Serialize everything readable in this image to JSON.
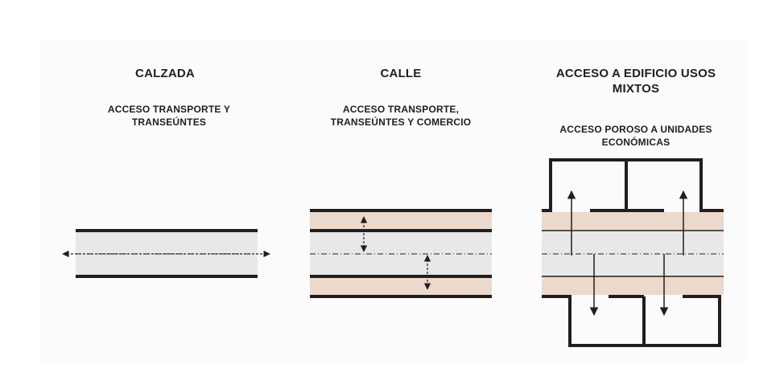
{
  "sections": [
    {
      "title": "CALZADA",
      "subtitle": "ACCESO TRANSPORTE Y TRANSEÚNTES"
    },
    {
      "title": "CALLE",
      "subtitle": "ACCESO TRANSPORTE, TRANSEÚNTES Y COMERCIO"
    },
    {
      "title": "ACCESO A EDIFICIO USOS MIXTOS",
      "subtitle": "ACCESO POROSO A UNIDADES ECONÓMICAS"
    }
  ],
  "colors": {
    "road": "#e8e8e8",
    "sidewalk": "#ecd9cc",
    "line": "#1f1f1f",
    "background": "#fbfbfb"
  }
}
